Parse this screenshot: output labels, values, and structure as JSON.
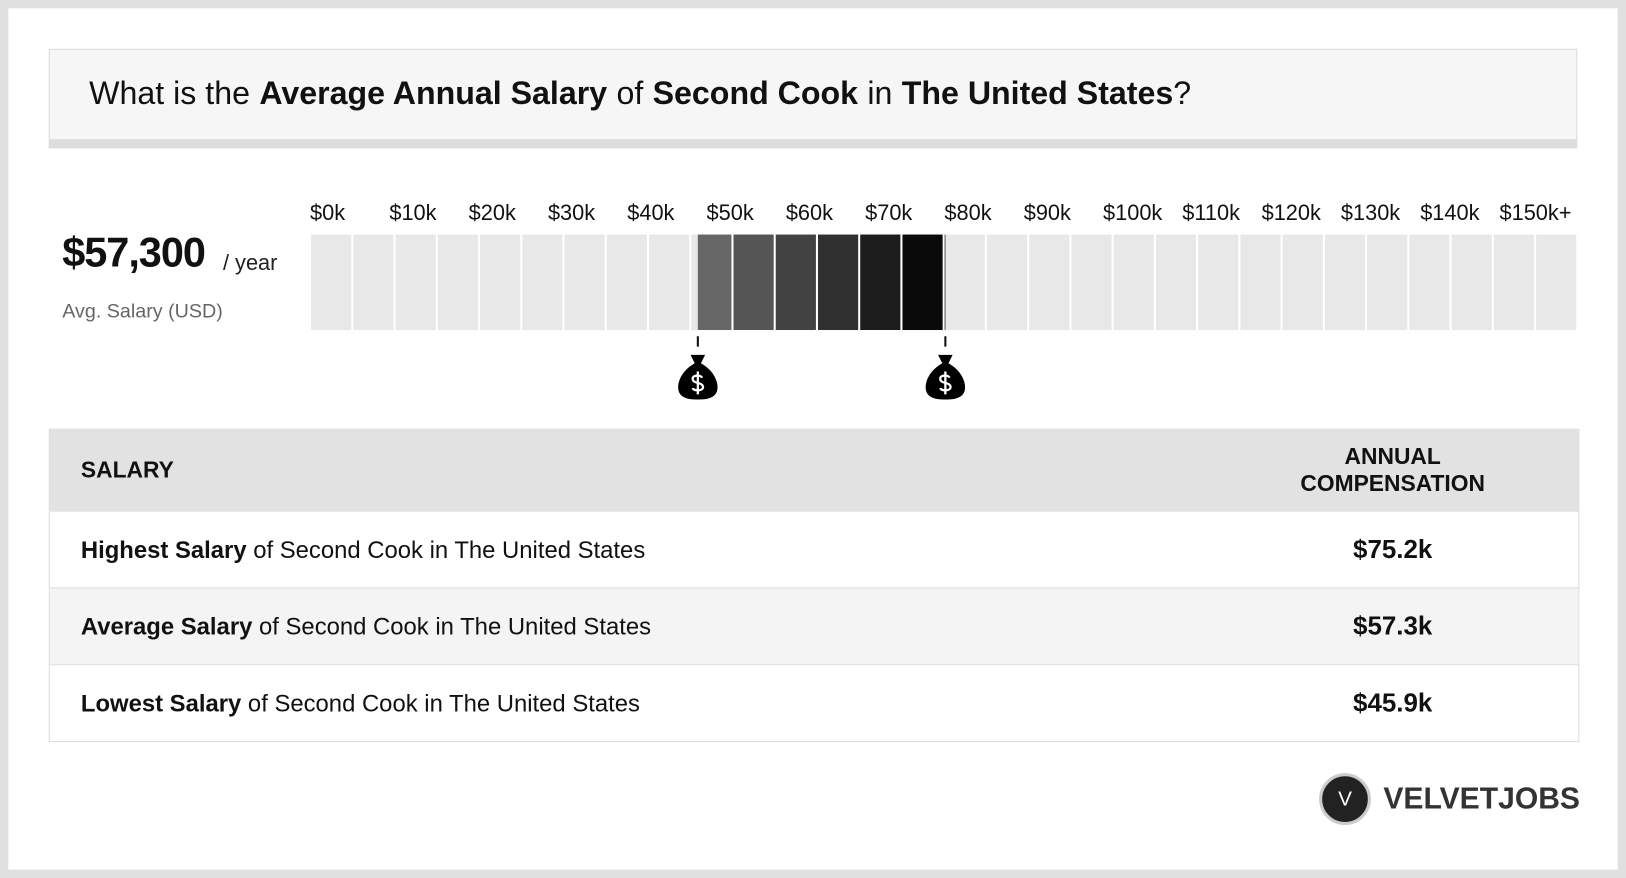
{
  "header": {
    "title_parts": [
      "What is the",
      "Average Annual Salary",
      "of",
      "Second Cook",
      "in",
      "The United States",
      "?"
    ]
  },
  "summary": {
    "amount": "$57,300",
    "unit": "/ year",
    "caption": "Avg. Salary (USD)"
  },
  "scale": {
    "ticks": [
      {
        "value": 0,
        "label": "$0k"
      },
      {
        "value": 10,
        "label": "$10k"
      },
      {
        "value": 20,
        "label": "$20k"
      },
      {
        "value": 30,
        "label": "$30k"
      },
      {
        "value": 40,
        "label": "$40k"
      },
      {
        "value": 50,
        "label": "$50k"
      },
      {
        "value": 60,
        "label": "$60k"
      },
      {
        "value": 70,
        "label": "$70k"
      },
      {
        "value": 80,
        "label": "$80k"
      },
      {
        "value": 90,
        "label": "$90k"
      },
      {
        "value": 100,
        "label": "$100k"
      },
      {
        "value": 110,
        "label": "$110k"
      },
      {
        "value": 120,
        "label": "$120k"
      },
      {
        "value": 130,
        "label": "$130k"
      },
      {
        "value": 140,
        "label": "$140k"
      },
      {
        "value": 150,
        "label": "$150k+"
      }
    ]
  },
  "table": {
    "header": [
      "SALARY",
      "ANNUAL COMPENSATION"
    ],
    "rows": [
      {
        "label_bold": "Highest Salary",
        "label_rest": "of Second Cook in The United States",
        "value": 75.2,
        "value_label": "$75.2k"
      },
      {
        "label_bold": "Average Salary",
        "label_rest": "of Second Cook in The United States",
        "value": 57.3,
        "value_label": "$57.3k"
      },
      {
        "label_bold": "Lowest Salary",
        "label_rest": "of Second Cook in The United States",
        "value": 45.9,
        "value_label": "$45.9k"
      }
    ]
  },
  "logo": {
    "initial": "V",
    "name": "VELVETJOBS"
  }
}
